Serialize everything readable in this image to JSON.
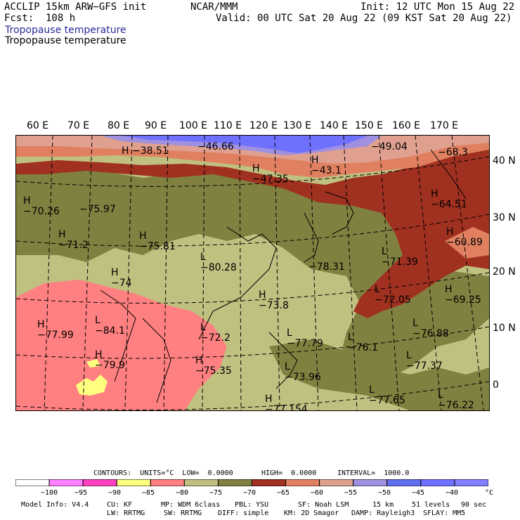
{
  "header": {
    "model": "ACCLIP 15km ARW−GFS init",
    "org": "NCAR/MMM",
    "init": "Init: 12 UTC Mon 15 Aug 22",
    "fcst": "Fcst:  108 h",
    "valid": "Valid: 00 UTC Sat 20 Aug 22 (09 KST Sat 20 Aug 22)",
    "field_title_blue": "Tropopause temperature",
    "field_title_black": "Tropopause temperature"
  },
  "colors": {
    "title_blue": "#2b2b9a",
    "bins": [
      "#ffffff",
      "#ff80ff",
      "#ff40c0",
      "#ffff80",
      "#ff8080",
      "#c0c080",
      "#808040",
      "#a03020",
      "#e08060",
      "#e0a090",
      "#a090e0",
      "#6070f0",
      "#7070ff",
      "#8080ff"
    ]
  },
  "lon_labels": [
    "60 E",
    "70 E",
    "80 E",
    "90 E",
    "100 E",
    "110 E",
    "120 E",
    "130 E",
    "140 E",
    "150 E",
    "160 E",
    "170 E"
  ],
  "lat_labels": [
    "40 N",
    "30 N",
    "20 N",
    "10 N",
    "0"
  ],
  "centers": [
    {
      "type": "H",
      "value": "−38.51"
    },
    {
      "type": "",
      "value": "−46.66"
    },
    {
      "type": "H",
      "value": "−47.35"
    },
    {
      "type": "H",
      "value": "−43.1"
    },
    {
      "type": "",
      "value": "−49.04"
    },
    {
      "type": "",
      "value": "−68.3"
    },
    {
      "type": "H",
      "value": "−70.26"
    },
    {
      "type": "",
      "value": "−75.97"
    },
    {
      "type": "H",
      "value": "−64.51"
    },
    {
      "type": "H",
      "value": "−71.2"
    },
    {
      "type": "H",
      "value": "−75.81"
    },
    {
      "type": "H",
      "value": "−60.89"
    },
    {
      "type": "L",
      "value": "−80.28"
    },
    {
      "type": "",
      "value": "−78.31"
    },
    {
      "type": "L",
      "value": "−71.39"
    },
    {
      "type": "H",
      "value": "−74"
    },
    {
      "type": "L",
      "value": "−72.05"
    },
    {
      "type": "H",
      "value": "−69.25"
    },
    {
      "type": "H",
      "value": "−73.8"
    },
    {
      "type": "H",
      "value": "−77.99"
    },
    {
      "type": "L",
      "value": "−84.1"
    },
    {
      "type": "L",
      "value": "−72.2"
    },
    {
      "type": "L",
      "value": "−77.79"
    },
    {
      "type": "L",
      "value": "−76.1"
    },
    {
      "type": "L",
      "value": "−76.88"
    },
    {
      "type": "H",
      "value": "−79.9"
    },
    {
      "type": "H",
      "value": "−75.35"
    },
    {
      "type": "L",
      "value": "−73.96"
    },
    {
      "type": "L",
      "value": "−77.37"
    },
    {
      "type": "H",
      "value": "−77.154"
    },
    {
      "type": "L",
      "value": "−77.65"
    },
    {
      "type": "L",
      "value": "−76.22"
    }
  ],
  "contours_line": {
    "contours": "CONTOURS:  UNITS=°C  LOW=  0.0000",
    "high": "HIGH=  0.0000",
    "interval": "INTERVAL=  1000.0"
  },
  "colorbar": {
    "ticks": [
      "−100",
      "−95",
      "−90",
      "−85",
      "−80",
      "−75",
      "−70",
      "−65",
      "−60",
      "−55",
      "−50",
      "−45",
      "−40"
    ],
    "unit": "°C"
  },
  "footer": {
    "line1": [
      "Model Info: V4.4",
      "CU: KF",
      "MP: WDM 6class",
      "PBL: YSU",
      "SF: Noah LSM",
      "15 km",
      "51 levels",
      "90 sec"
    ],
    "line2": [
      "LW: RRTMG",
      "SW: RRTMG",
      "DIFF: simple",
      "KM: 2D Smagor",
      "DAMP: Rayleigh3",
      "SFLAY: MM5"
    ]
  }
}
